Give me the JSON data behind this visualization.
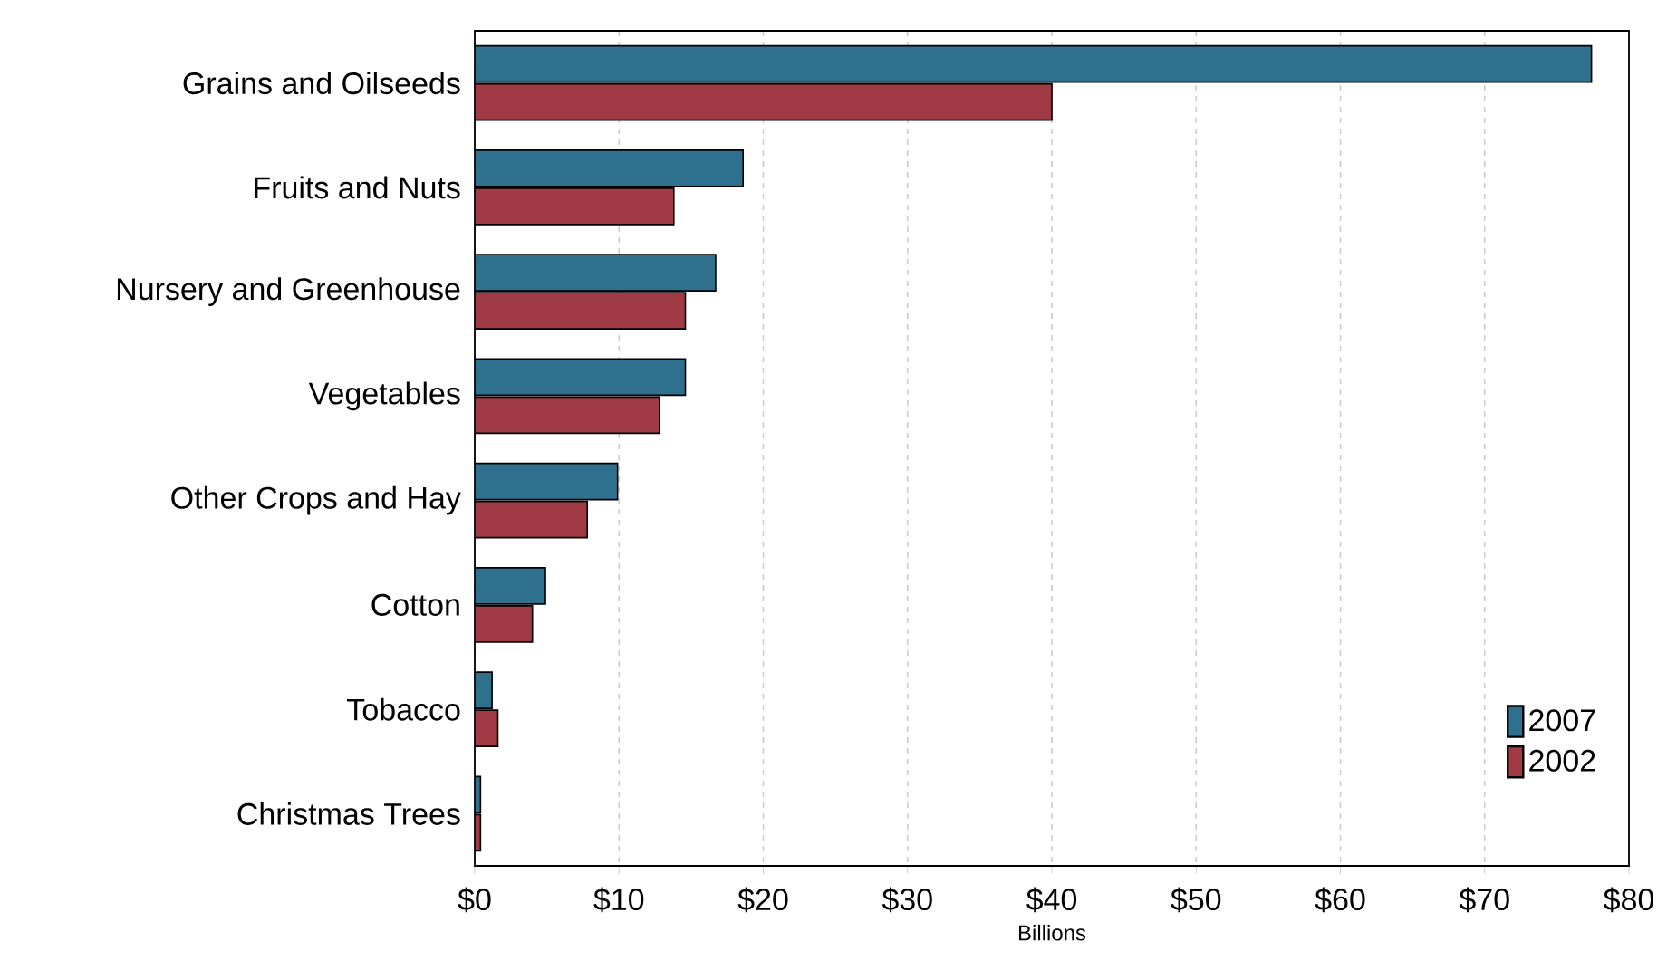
{
  "chart_data": {
    "type": "bar",
    "orientation": "horizontal",
    "xlabel": "Billions",
    "categories": [
      "Grains and Oilseeds",
      "Fruits and Nuts",
      "Nursery and Greenhouse",
      "Vegetables",
      "Other Crops and Hay",
      "Cotton",
      "Tobacco",
      "Christmas Trees"
    ],
    "series": [
      {
        "name": "2007",
        "color": "#30708f",
        "values": [
          77.4,
          18.6,
          16.7,
          14.6,
          9.9,
          4.9,
          1.2,
          0.4
        ]
      },
      {
        "name": "2002",
        "color": "#a03a44",
        "values": [
          40.0,
          13.8,
          14.6,
          12.8,
          7.8,
          4.0,
          1.6,
          0.4
        ]
      }
    ],
    "xlim": [
      0,
      80
    ],
    "xticks": [
      {
        "value": 0,
        "label": "$0"
      },
      {
        "value": 10,
        "label": "$10"
      },
      {
        "value": 20,
        "label": "$20"
      },
      {
        "value": 30,
        "label": "$30"
      },
      {
        "value": 40,
        "label": "$40"
      },
      {
        "value": 50,
        "label": "$50"
      },
      {
        "value": 60,
        "label": "$60"
      },
      {
        "value": 70,
        "label": "$70"
      },
      {
        "value": 80,
        "label": "$80"
      }
    ],
    "grid": "x",
    "legend": "bottom right"
  }
}
